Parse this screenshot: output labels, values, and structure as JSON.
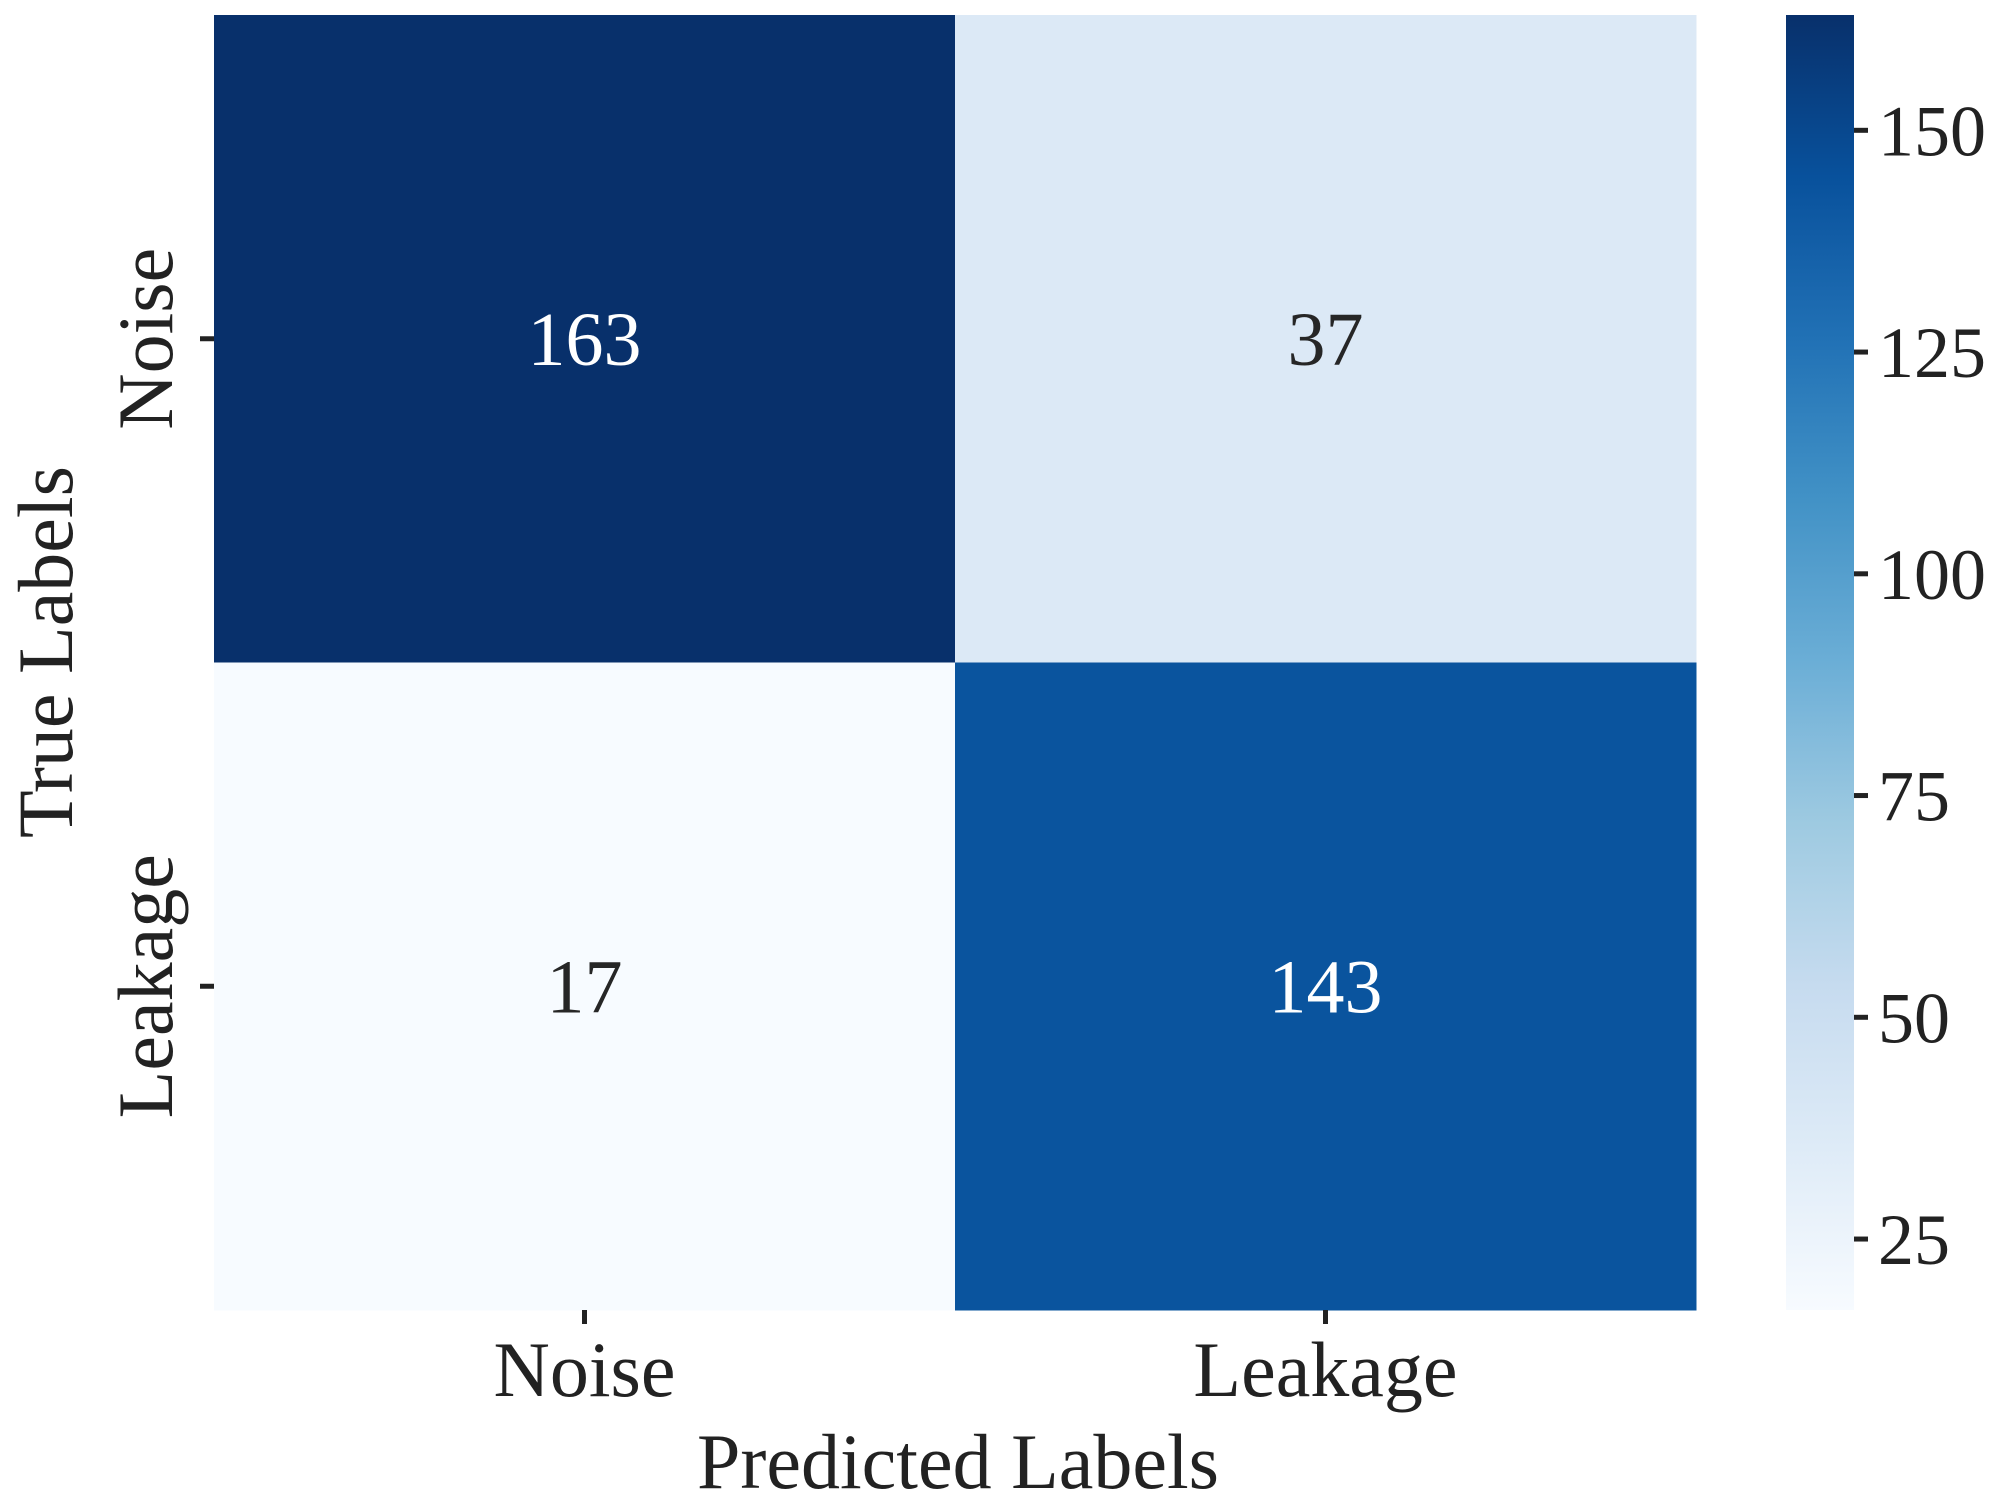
{
  "chart_data": {
    "type": "heatmap",
    "title": "",
    "xlabel": "Predicted Labels",
    "ylabel": "True Labels",
    "x_categories": [
      "Noise",
      "Leakage"
    ],
    "y_categories": [
      "Noise",
      "Leakage"
    ],
    "values": [
      [
        163,
        37
      ],
      [
        17,
        143
      ]
    ],
    "colormap": "Blues",
    "colorbar": {
      "min": 17,
      "max": 163,
      "ticks": [
        25,
        50,
        75,
        100,
        125,
        150
      ]
    },
    "grid": false
  }
}
